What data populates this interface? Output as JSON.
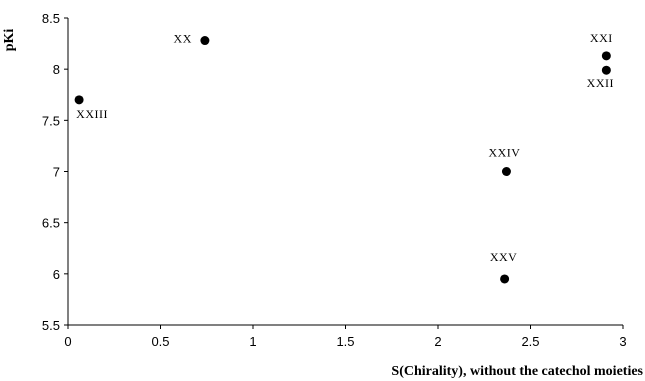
{
  "chart_data": {
    "type": "scatter",
    "title": "",
    "xlabel": "S(Chirality), without the catechol moieties",
    "ylabel": "pKi",
    "xlim": [
      0,
      3
    ],
    "ylim": [
      5.5,
      8.5
    ],
    "xticks": [
      "0",
      "0.5",
      "1",
      "1.5",
      "2",
      "2.5",
      "3"
    ],
    "yticks": [
      "5.5",
      "6",
      "6.5",
      "7",
      "7.5",
      "8",
      "8.5"
    ],
    "grid": false,
    "legend": "none",
    "marker_color": "#000000",
    "points": [
      {
        "label": "XX",
        "x": 0.74,
        "y": 8.28
      },
      {
        "label": "XXI",
        "x": 2.91,
        "y": 8.13
      },
      {
        "label": "XXII",
        "x": 2.91,
        "y": 7.99
      },
      {
        "label": "XXIII",
        "x": 0.06,
        "y": 7.7
      },
      {
        "label": "XXIV",
        "x": 2.37,
        "y": 7.0
      },
      {
        "label": "XXV",
        "x": 2.36,
        "y": 5.95
      }
    ]
  }
}
